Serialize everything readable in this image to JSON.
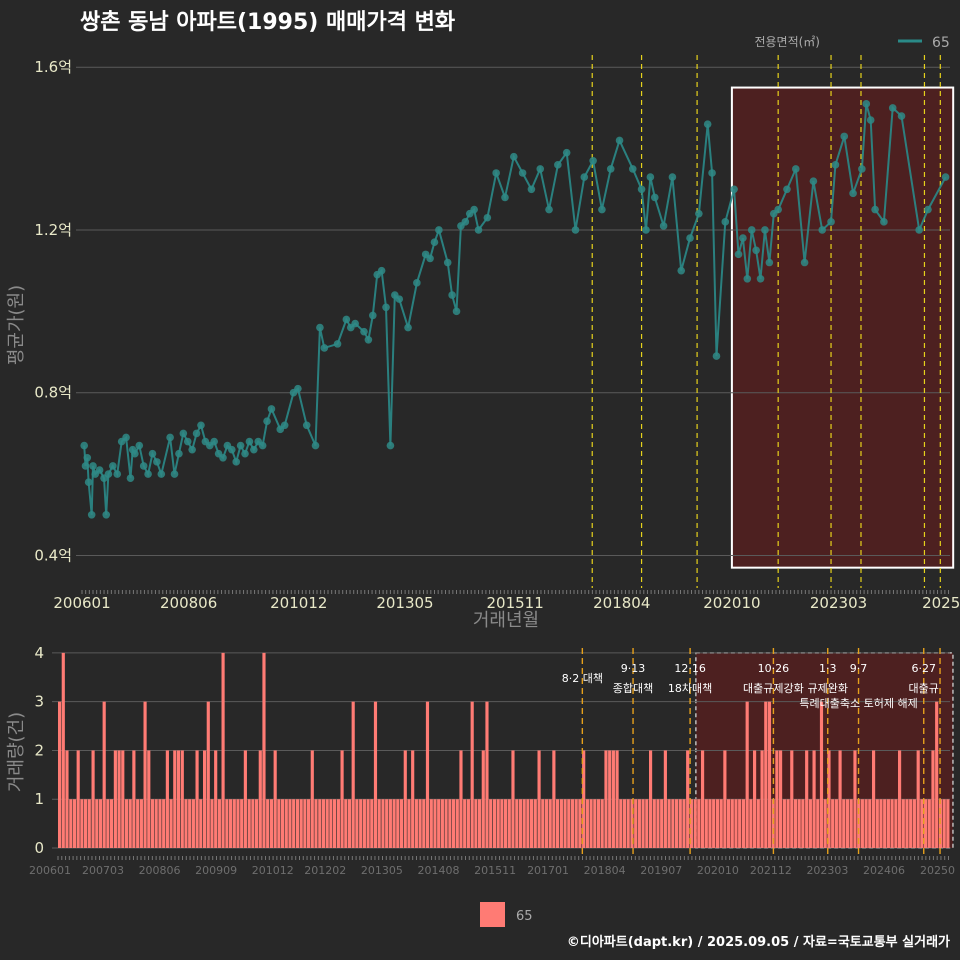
{
  "title": "쌍촌 동남 아파트(1995) 매매가격 변화",
  "credit": "©디아파트(dapt.kr) / 2025.09.05 / 자료=국토교통부 실거래가",
  "colors": {
    "bg": "#282828",
    "line": "#2a8a88",
    "point": "#2f8a86",
    "bar": "#ff7b74",
    "vline_yellow": "#e6d21c",
    "vline_orange": "#e6a01c",
    "highlight_fill": "#5a1e1e"
  },
  "legend_top": {
    "title": "전용면적(㎡)",
    "label": "65"
  },
  "legend_bottom": {
    "label": "65"
  },
  "chart_data": [
    {
      "type": "line",
      "title": "쌍촌 동남 아파트(1995) 매매가격 변화",
      "xlabel": "거래년월",
      "ylabel": "평균가(원)",
      "x_range": [
        2006.0,
        2025.7
      ],
      "ylim": [
        0.32,
        1.63
      ],
      "yticks": [
        0.4,
        0.8,
        1.2,
        1.6
      ],
      "ytick_labels": [
        "0.4억",
        "0.8억",
        "1.2억",
        "1.6억"
      ],
      "xticks": [
        2006.0,
        2008.42,
        2010.92,
        2013.33,
        2015.83,
        2018.25,
        2020.75,
        2023.17,
        2025.5
      ],
      "xtick_labels": [
        "200601",
        "200806",
        "201012",
        "201305",
        "201511",
        "201804",
        "202010",
        "202303",
        "2025"
      ],
      "highlight_range": [
        2020.75,
        2025.5
      ],
      "event_lines": [
        {
          "x": 2017.58,
          "color": "yellow"
        },
        {
          "x": 2018.7,
          "color": "yellow"
        },
        {
          "x": 2019.96,
          "color": "yellow"
        },
        {
          "x": 2021.8,
          "color": "yellow"
        },
        {
          "x": 2023.0,
          "color": "yellow"
        },
        {
          "x": 2023.68,
          "color": "yellow"
        },
        {
          "x": 2025.12,
          "color": "yellow"
        },
        {
          "x": 2025.48,
          "color": "yellow"
        }
      ],
      "series": [
        {
          "name": "65",
          "points": [
            [
              2006.05,
              0.67
            ],
            [
              2006.08,
              0.62
            ],
            [
              2006.12,
              0.64
            ],
            [
              2006.15,
              0.58
            ],
            [
              2006.22,
              0.5
            ],
            [
              2006.25,
              0.62
            ],
            [
              2006.3,
              0.6
            ],
            [
              2006.4,
              0.61
            ],
            [
              2006.5,
              0.59
            ],
            [
              2006.55,
              0.5
            ],
            [
              2006.6,
              0.6
            ],
            [
              2006.7,
              0.62
            ],
            [
              2006.8,
              0.6
            ],
            [
              2006.9,
              0.68
            ],
            [
              2007.0,
              0.69
            ],
            [
              2007.1,
              0.59
            ],
            [
              2007.15,
              0.66
            ],
            [
              2007.2,
              0.65
            ],
            [
              2007.3,
              0.67
            ],
            [
              2007.4,
              0.62
            ],
            [
              2007.5,
              0.6
            ],
            [
              2007.6,
              0.65
            ],
            [
              2007.7,
              0.63
            ],
            [
              2007.8,
              0.6
            ],
            [
              2008.0,
              0.69
            ],
            [
              2008.1,
              0.6
            ],
            [
              2008.2,
              0.65
            ],
            [
              2008.3,
              0.7
            ],
            [
              2008.4,
              0.68
            ],
            [
              2008.5,
              0.66
            ],
            [
              2008.6,
              0.7
            ],
            [
              2008.7,
              0.72
            ],
            [
              2008.8,
              0.68
            ],
            [
              2008.9,
              0.67
            ],
            [
              2009.0,
              0.68
            ],
            [
              2009.1,
              0.65
            ],
            [
              2009.2,
              0.64
            ],
            [
              2009.3,
              0.67
            ],
            [
              2009.4,
              0.66
            ],
            [
              2009.5,
              0.63
            ],
            [
              2009.6,
              0.67
            ],
            [
              2009.7,
              0.65
            ],
            [
              2009.8,
              0.68
            ],
            [
              2009.9,
              0.66
            ],
            [
              2010.0,
              0.68
            ],
            [
              2010.1,
              0.67
            ],
            [
              2010.2,
              0.73
            ],
            [
              2010.3,
              0.76
            ],
            [
              2010.5,
              0.71
            ],
            [
              2010.6,
              0.72
            ],
            [
              2010.8,
              0.8
            ],
            [
              2010.9,
              0.81
            ],
            [
              2011.1,
              0.72
            ],
            [
              2011.3,
              0.67
            ],
            [
              2011.4,
              0.96
            ],
            [
              2011.5,
              0.91
            ],
            [
              2011.8,
              0.92
            ],
            [
              2012.0,
              0.98
            ],
            [
              2012.1,
              0.96
            ],
            [
              2012.2,
              0.97
            ],
            [
              2012.4,
              0.95
            ],
            [
              2012.5,
              0.93
            ],
            [
              2012.6,
              0.99
            ],
            [
              2012.7,
              1.09
            ],
            [
              2012.8,
              1.1
            ],
            [
              2012.9,
              1.01
            ],
            [
              2013.0,
              0.67
            ],
            [
              2013.1,
              1.04
            ],
            [
              2013.2,
              1.03
            ],
            [
              2013.4,
              0.96
            ],
            [
              2013.6,
              1.07
            ],
            [
              2013.8,
              1.14
            ],
            [
              2013.9,
              1.13
            ],
            [
              2014.0,
              1.17
            ],
            [
              2014.1,
              1.2
            ],
            [
              2014.3,
              1.12
            ],
            [
              2014.4,
              1.04
            ],
            [
              2014.5,
              1.0
            ],
            [
              2014.6,
              1.21
            ],
            [
              2014.7,
              1.22
            ],
            [
              2014.8,
              1.24
            ],
            [
              2014.9,
              1.25
            ],
            [
              2015.0,
              1.2
            ],
            [
              2015.2,
              1.23
            ],
            [
              2015.4,
              1.34
            ],
            [
              2015.6,
              1.28
            ],
            [
              2015.8,
              1.38
            ],
            [
              2016.0,
              1.34
            ],
            [
              2016.2,
              1.3
            ],
            [
              2016.4,
              1.35
            ],
            [
              2016.6,
              1.25
            ],
            [
              2016.8,
              1.36
            ],
            [
              2017.0,
              1.39
            ],
            [
              2017.2,
              1.2
            ],
            [
              2017.4,
              1.33
            ],
            [
              2017.6,
              1.37
            ],
            [
              2017.8,
              1.25
            ],
            [
              2018.0,
              1.35
            ],
            [
              2018.2,
              1.42
            ],
            [
              2018.5,
              1.35
            ],
            [
              2018.7,
              1.3
            ],
            [
              2018.8,
              1.2
            ],
            [
              2018.9,
              1.33
            ],
            [
              2019.0,
              1.28
            ],
            [
              2019.2,
              1.21
            ],
            [
              2019.4,
              1.33
            ],
            [
              2019.6,
              1.1
            ],
            [
              2019.8,
              1.18
            ],
            [
              2020.0,
              1.24
            ],
            [
              2020.2,
              1.46
            ],
            [
              2020.3,
              1.34
            ],
            [
              2020.4,
              0.89
            ],
            [
              2020.6,
              1.22
            ],
            [
              2020.8,
              1.3
            ],
            [
              2020.9,
              1.14
            ],
            [
              2021.0,
              1.18
            ],
            [
              2021.1,
              1.08
            ],
            [
              2021.2,
              1.2
            ],
            [
              2021.3,
              1.15
            ],
            [
              2021.4,
              1.08
            ],
            [
              2021.5,
              1.2
            ],
            [
              2021.6,
              1.12
            ],
            [
              2021.7,
              1.24
            ],
            [
              2021.8,
              1.25
            ],
            [
              2022.0,
              1.3
            ],
            [
              2022.2,
              1.35
            ],
            [
              2022.4,
              1.12
            ],
            [
              2022.6,
              1.32
            ],
            [
              2022.8,
              1.2
            ],
            [
              2023.0,
              1.22
            ],
            [
              2023.1,
              1.36
            ],
            [
              2023.3,
              1.43
            ],
            [
              2023.5,
              1.29
            ],
            [
              2023.7,
              1.35
            ],
            [
              2023.8,
              1.51
            ],
            [
              2023.9,
              1.47
            ],
            [
              2024.0,
              1.25
            ],
            [
              2024.2,
              1.22
            ],
            [
              2024.4,
              1.5
            ],
            [
              2024.6,
              1.48
            ],
            [
              2025.0,
              1.2
            ],
            [
              2025.2,
              1.25
            ],
            [
              2025.6,
              1.33
            ]
          ]
        }
      ]
    },
    {
      "type": "bar",
      "xlabel": "",
      "ylabel": "거래량(건)",
      "x_range": [
        2006.0,
        2025.7
      ],
      "ylim": [
        0,
        4.1
      ],
      "yticks": [
        0,
        1,
        2,
        3,
        4
      ],
      "ytick_labels": [
        "0",
        "1",
        "2",
        "3",
        "4"
      ],
      "xticks": [
        2006.0,
        2007.17,
        2008.42,
        2009.67,
        2010.92,
        2012.08,
        2013.33,
        2014.58,
        2015.83,
        2017.0,
        2018.25,
        2019.5,
        2020.75,
        2021.92,
        2023.17,
        2024.42,
        2025.6
      ],
      "xtick_labels": [
        "200601",
        "200703",
        "200806",
        "200909",
        "201012",
        "201202",
        "201305",
        "201408",
        "201511",
        "201701",
        "201804",
        "201907",
        "202010",
        "202112",
        "202303",
        "202406",
        "20250"
      ],
      "highlight_range": [
        2020.75,
        2025.5
      ],
      "events": [
        {
          "x": 2017.58,
          "label1": "8·2 대책",
          "label2": ""
        },
        {
          "x": 2018.7,
          "label1": "9·13",
          "label2": "종합대책"
        },
        {
          "x": 2019.96,
          "label1": "12·16",
          "label2": "18차대책"
        },
        {
          "x": 2021.8,
          "label1": "10·26",
          "label2": "대출규제강화"
        },
        {
          "x": 2023.0,
          "label1": "1·3",
          "label2": "규제완화"
        },
        {
          "x": 2023.68,
          "label1": "9·7",
          "label2": "특례대출축소 토허제 해제"
        },
        {
          "x": 2025.12,
          "label1": "6·27",
          "label2": "대출규"
        },
        {
          "x": 2025.48,
          "label1": "",
          "label2": ""
        }
      ],
      "series": [
        {
          "name": "65",
          "values": [
            3,
            4,
            2,
            1,
            1,
            2,
            1,
            1,
            1,
            2,
            1,
            1,
            3,
            1,
            1,
            2,
            2,
            2,
            1,
            1,
            2,
            1,
            1,
            3,
            2,
            1,
            1,
            1,
            1,
            2,
            1,
            2,
            2,
            2,
            1,
            1,
            1,
            2,
            1,
            2,
            3,
            1,
            2,
            1,
            4,
            1,
            1,
            1,
            1,
            1,
            2,
            1,
            1,
            1,
            2,
            4,
            1,
            1,
            2,
            1,
            1,
            1,
            1,
            1,
            1,
            1,
            1,
            1,
            2,
            1,
            1,
            1,
            1,
            1,
            1,
            1,
            2,
            1,
            1,
            3,
            1,
            1,
            1,
            1,
            1,
            3,
            1,
            1,
            1,
            1,
            1,
            1,
            1,
            2,
            1,
            2,
            1,
            1,
            1,
            3,
            1,
            1,
            1,
            1,
            1,
            1,
            1,
            1,
            2,
            1,
            1,
            3,
            1,
            1,
            2,
            3,
            1,
            1,
            1,
            1,
            1,
            1,
            2,
            1,
            1,
            1,
            1,
            1,
            1,
            2,
            1,
            1,
            1,
            2,
            1,
            1,
            1,
            1,
            1,
            1,
            1,
            2,
            1,
            1,
            1,
            1,
            1,
            2,
            2,
            2,
            2,
            1,
            1,
            1,
            1,
            1,
            1,
            1,
            1,
            2,
            1,
            1,
            1,
            2,
            1,
            1,
            1,
            1,
            1,
            2,
            1,
            1,
            1,
            2,
            1,
            1,
            1,
            1,
            1,
            2,
            1,
            1,
            1,
            1,
            1,
            3,
            1,
            2,
            1,
            2,
            3,
            3,
            1,
            2,
            2,
            1,
            1,
            2,
            1,
            1,
            1,
            2,
            1,
            2,
            1,
            3,
            1,
            2,
            1,
            1,
            2,
            1,
            1,
            1,
            2,
            1,
            1,
            1,
            1,
            2,
            1,
            1,
            1,
            1,
            1,
            1,
            2,
            1,
            1,
            1,
            1,
            2,
            1,
            1,
            1,
            2,
            3,
            1,
            1,
            1
          ]
        }
      ]
    }
  ]
}
